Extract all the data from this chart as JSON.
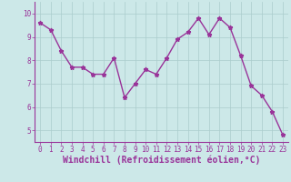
{
  "x": [
    0,
    1,
    2,
    3,
    4,
    5,
    6,
    7,
    8,
    9,
    10,
    11,
    12,
    13,
    14,
    15,
    16,
    17,
    18,
    19,
    20,
    21,
    22,
    23
  ],
  "y": [
    9.6,
    9.3,
    8.4,
    7.7,
    7.7,
    7.4,
    7.4,
    8.1,
    6.4,
    7.0,
    7.6,
    7.4,
    8.1,
    8.9,
    9.2,
    9.8,
    9.1,
    9.8,
    9.4,
    8.2,
    6.9,
    6.5,
    5.8,
    4.8
  ],
  "line_color": "#993399",
  "marker": "*",
  "marker_size": 3.5,
  "bg_color": "#cce8e8",
  "grid_color": "#aacccc",
  "xlabel": "Windchill (Refroidissement éolien,°C)",
  "xlim": [
    -0.5,
    23.5
  ],
  "ylim": [
    4.5,
    10.5
  ],
  "yticks": [
    5,
    6,
    7,
    8,
    9,
    10
  ],
  "xticks": [
    0,
    1,
    2,
    3,
    4,
    5,
    6,
    7,
    8,
    9,
    10,
    11,
    12,
    13,
    14,
    15,
    16,
    17,
    18,
    19,
    20,
    21,
    22,
    23
  ],
  "axis_color": "#993399",
  "tick_color": "#993399",
  "xlabel_color": "#993399",
  "tick_fontsize": 5.5,
  "xlabel_fontsize": 7.0,
  "linewidth": 1.0
}
